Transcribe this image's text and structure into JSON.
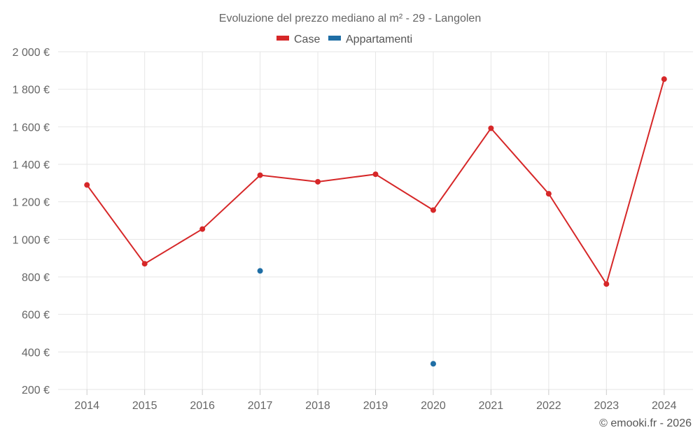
{
  "chart_data": {
    "type": "line",
    "title": "Evoluzione del prezzo mediano al m² - 29 - Langolen",
    "categories": [
      "2014",
      "2015",
      "2016",
      "2017",
      "2018",
      "2019",
      "2020",
      "2021",
      "2022",
      "2023",
      "2024"
    ],
    "series": [
      {
        "name": "Case",
        "color": "#d62728",
        "values": [
          1290,
          870,
          1055,
          1342,
          1307,
          1347,
          1156,
          1592,
          1243,
          762,
          1854
        ]
      },
      {
        "name": "Appartamenti",
        "color": "#1f6ea5",
        "values": [
          null,
          null,
          null,
          832,
          null,
          null,
          337,
          null,
          null,
          null,
          null
        ]
      }
    ],
    "ylim": [
      200,
      2000
    ],
    "yticks": [
      200,
      400,
      600,
      800,
      1000,
      1200,
      1400,
      1600,
      1800,
      2000
    ],
    "ytick_labels": [
      "200 €",
      "400 €",
      "600 €",
      "800 €",
      "1 000 €",
      "1 200 €",
      "1 400 €",
      "1 600 €",
      "1 800 €",
      "2 000 €"
    ],
    "xlabel": "",
    "ylabel": "",
    "grid": true,
    "legend_position": "top-center"
  },
  "credit": "© emooki.fr - 2026"
}
